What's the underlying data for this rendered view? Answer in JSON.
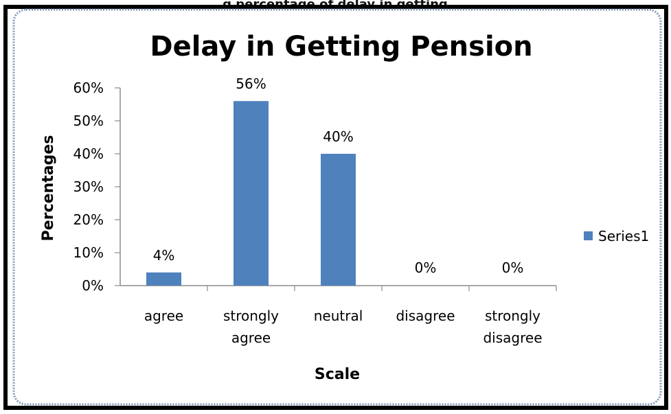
{
  "header_fragment": "g percentage of delay in getting",
  "chart_data": {
    "type": "bar",
    "title": "Delay in Getting Pension",
    "xlabel": "Scale",
    "ylabel": "Percentages",
    "categories": [
      [
        "agree"
      ],
      [
        "strongly",
        "agree"
      ],
      [
        "neutral"
      ],
      [
        "disagree"
      ],
      [
        "strongly",
        "disagree"
      ]
    ],
    "series": [
      {
        "name": "Series1",
        "values": [
          4,
          56,
          40,
          0,
          0
        ],
        "labels": [
          "4%",
          "56%",
          "40%",
          "0%",
          "0%"
        ],
        "color": "#4f81bd"
      }
    ],
    "ylim": [
      0,
      60
    ],
    "yticks": [
      0,
      10,
      20,
      30,
      40,
      50,
      60
    ],
    "ytick_labels": [
      "0%",
      "10%",
      "20%",
      "30%",
      "40%",
      "50%",
      "60%"
    ],
    "grid": false,
    "legend_position": "right"
  },
  "colors": {
    "frame": "#000000",
    "card_border": "#7f95b8",
    "card_fill": "#ffffff",
    "axis": "#8c8c8c",
    "text": "#000000",
    "muted_text": "#404040"
  }
}
